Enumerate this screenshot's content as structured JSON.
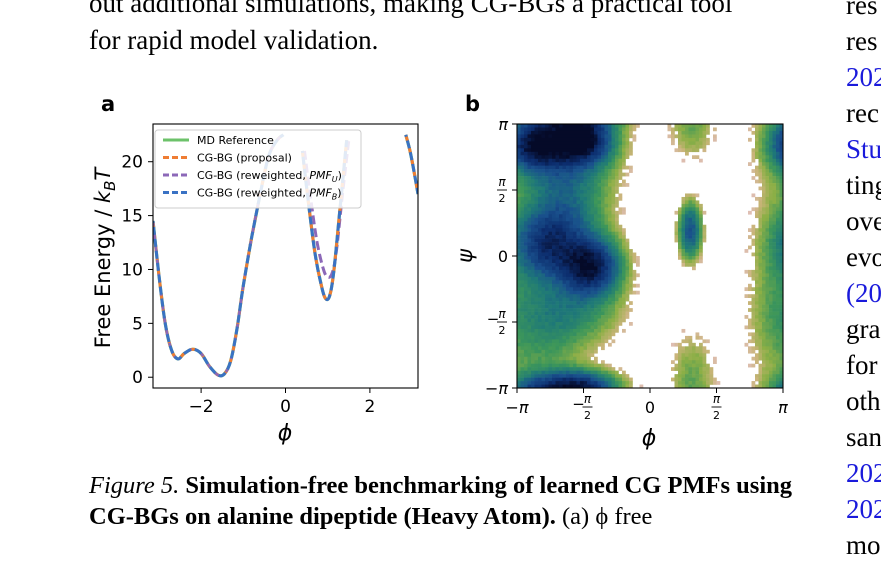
{
  "body_text": {
    "line1": "out additional simulations, making CG-BGs a practical tool",
    "line2": "for rapid model validation."
  },
  "right_column": {
    "lines": [
      "res",
      "res",
      "202",
      "rec",
      "Stu",
      "ting",
      "ove",
      "evo",
      "(20",
      "gra",
      "for",
      "oth",
      "san",
      "202",
      "202",
      "mo"
    ],
    "link_flags": [
      false,
      false,
      true,
      false,
      true,
      false,
      false,
      false,
      true,
      false,
      false,
      false,
      false,
      true,
      true,
      false
    ]
  },
  "panel_a": {
    "letter": "a",
    "ylabel": "Free Energy / k_BT",
    "xlabel": "ϕ",
    "xticks": [
      "−2",
      "0",
      "2"
    ],
    "yticks": [
      "0",
      "5",
      "10",
      "15",
      "20"
    ],
    "legend": [
      {
        "label": "MD Reference",
        "color": "#6cc26a",
        "dash": "solid"
      },
      {
        "label": "CG-BG (proposal)",
        "color": "#ef7d33",
        "dash": "dashed"
      },
      {
        "label": "CG-BG (reweighted, PMF_U)",
        "color": "#8c68b8",
        "dash": "dashed"
      },
      {
        "label": "CG-BG (reweighted, PMF_B)",
        "color": "#3a72c4",
        "dash": "dashed"
      }
    ]
  },
  "panel_b": {
    "letter": "b",
    "ylabel": "ψ",
    "xlabel": "ϕ",
    "xticks": [
      "−π",
      "−π/2",
      "0",
      "π/2",
      "π"
    ],
    "yticks": [
      "π",
      "π/2",
      "0",
      "−π/2",
      "−π"
    ]
  },
  "chart_data": [
    {
      "type": "line",
      "title": "",
      "xlabel": "ϕ",
      "ylabel": "Free Energy / k_BT",
      "xlim": [
        -3.14,
        3.14
      ],
      "ylim": [
        -1,
        23.5
      ],
      "grid": false,
      "legend_position": "top-left",
      "series": [
        {
          "name": "MD Reference",
          "color": "#6cc26a",
          "x": [
            -3.14,
            -3.0,
            -2.85,
            -2.7,
            -2.55,
            -2.4,
            -2.2,
            -2.0,
            -1.8,
            -1.6,
            -1.45,
            -1.3,
            -1.15,
            -1.0,
            -0.8,
            -0.6,
            -0.4,
            -0.2,
            -0.05
          ],
          "y": [
            14.5,
            9.5,
            5.0,
            2.5,
            1.7,
            2.2,
            2.6,
            2.2,
            1.0,
            0.2,
            0.3,
            1.5,
            4.5,
            8.5,
            13.0,
            17.0,
            20.5,
            22.0,
            22.5
          ]
        },
        {
          "name": "MD Reference",
          "color": "#6cc26a",
          "x": [
            0.4,
            0.55,
            0.7,
            0.85,
            0.95,
            1.05,
            1.15,
            1.3,
            1.45
          ],
          "y": [
            21.0,
            16.0,
            11.5,
            8.5,
            7.3,
            7.6,
            10.0,
            16.0,
            22.0
          ]
        },
        {
          "name": "MD Reference",
          "color": "#6cc26a",
          "x": [
            2.85,
            2.95,
            3.05,
            3.14
          ],
          "y": [
            22.5,
            21.0,
            19.0,
            17.0
          ]
        },
        {
          "name": "CG-BG (reweighted, PMF_U)",
          "color": "#8c68b8",
          "x": [
            0.45,
            0.6,
            0.75,
            0.9,
            1.0,
            1.1,
            1.2,
            1.35,
            1.5
          ],
          "y": [
            21.0,
            16.5,
            12.5,
            10.0,
            9.3,
            9.6,
            11.5,
            17.0,
            22.0
          ]
        }
      ]
    },
    {
      "type": "heatmap",
      "title": "",
      "xlabel": "ϕ",
      "ylabel": "ψ",
      "xlim": [
        -3.14159,
        3.14159
      ],
      "ylim": [
        -3.14159,
        3.14159
      ],
      "colormap": "viridis-like, low free energy dark blue, high free energy light pink",
      "basins": [
        {
          "phi": -1.6,
          "psi": 2.8,
          "depth": 1.0
        },
        {
          "phi": -2.6,
          "psi": 2.7,
          "depth": 0.85
        },
        {
          "phi": -1.4,
          "psi": -0.25,
          "depth": 0.95
        },
        {
          "phi": -2.4,
          "psi": 0.2,
          "depth": 0.7
        },
        {
          "phi": 0.95,
          "psi": 0.6,
          "depth": 0.55
        },
        {
          "phi": -1.9,
          "psi": -3.0,
          "depth": 0.45
        }
      ]
    }
  ],
  "caption": {
    "label": "Figure 5.",
    "bold": "Simulation-free benchmarking of learned CG PMFs using CG-BGs on alanine dipeptide (Heavy Atom).",
    "rest": "(a) ϕ free"
  }
}
